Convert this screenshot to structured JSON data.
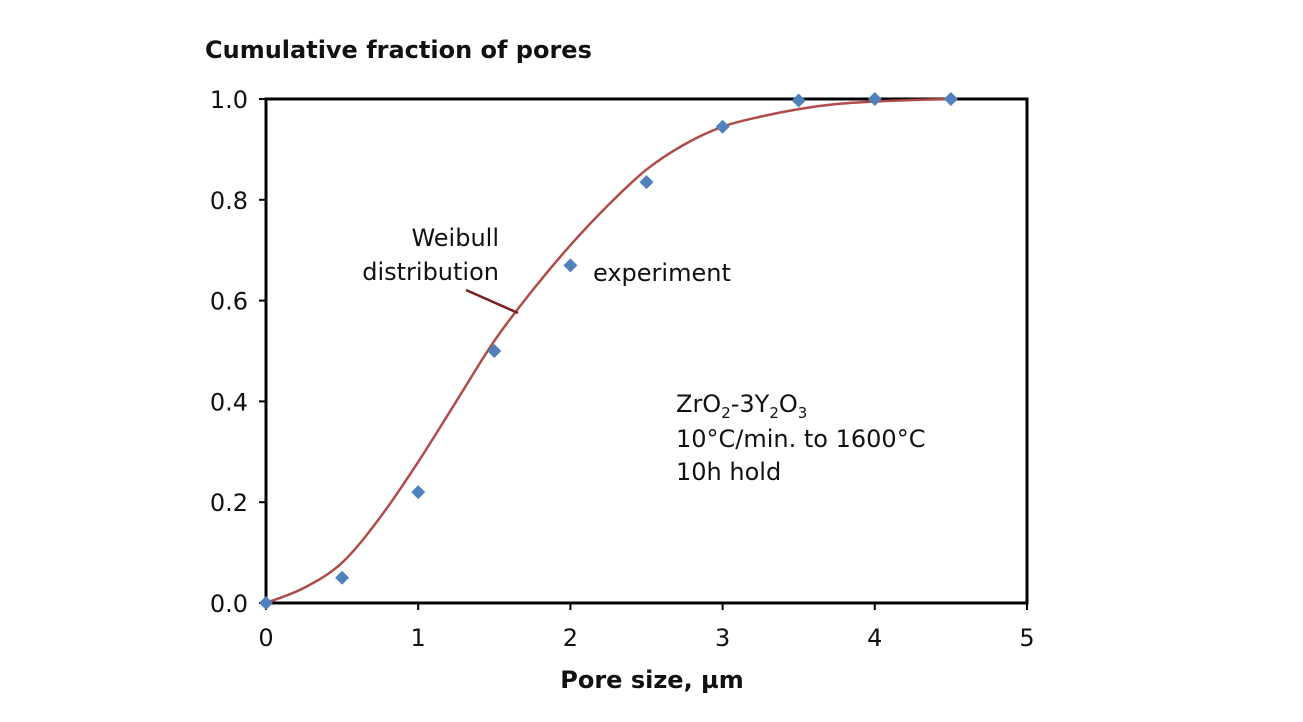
{
  "chart_data": {
    "type": "scatter",
    "title": "",
    "ylabel": "Cumulative fraction of pores",
    "xlabel": "Pore size, µm",
    "xlim": [
      0,
      5
    ],
    "ylim": [
      0,
      1.0
    ],
    "x_ticks": [
      "0",
      "1",
      "2",
      "3",
      "4",
      "5"
    ],
    "y_ticks": [
      "0.0",
      "0.2",
      "0.4",
      "0.6",
      "0.8",
      "1.0"
    ],
    "grid": false,
    "series": [
      {
        "name": "experiment",
        "kind": "points",
        "marker": "diamond",
        "color": "#4f81bd",
        "x": [
          0,
          0.5,
          1.0,
          1.5,
          2.0,
          2.5,
          3.0,
          3.5,
          4.0,
          4.5
        ],
        "y": [
          0.0,
          0.05,
          0.22,
          0.5,
          0.67,
          0.835,
          0.945,
          0.997,
          1.0,
          1.0
        ]
      },
      {
        "name": "Weibull distribution",
        "kind": "line",
        "color": "#b04c48",
        "x": [
          0,
          0.25,
          0.5,
          0.75,
          1.0,
          1.25,
          1.5,
          1.75,
          2.0,
          2.25,
          2.5,
          2.75,
          3.0,
          3.25,
          3.5,
          3.75,
          4.0,
          4.25,
          4.5
        ],
        "y": [
          0.0,
          0.03,
          0.08,
          0.17,
          0.28,
          0.4,
          0.52,
          0.62,
          0.71,
          0.79,
          0.86,
          0.91,
          0.945,
          0.965,
          0.98,
          0.99,
          0.995,
          0.998,
          1.0
        ]
      }
    ],
    "annotations": {
      "weibull_line1": "Weibull",
      "weibull_line2": "distribution",
      "experiment": "experiment",
      "material": {
        "zr": "ZrO",
        "sub1": "2",
        "mid": "-3Y",
        "sub2": "2",
        "o": "O",
        "sub3": "3"
      },
      "heating": "10°C/min. to 1600°C",
      "hold": "10h hold"
    }
  }
}
